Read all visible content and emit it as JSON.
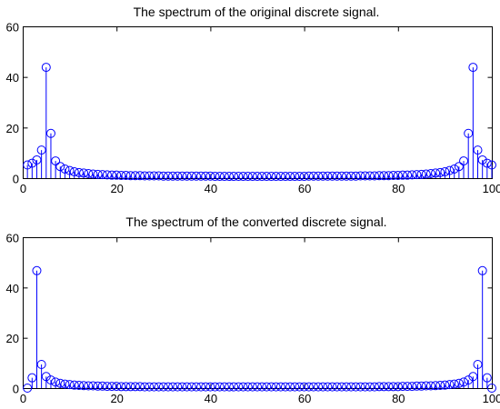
{
  "chart_data": [
    {
      "type": "stem",
      "title": "The spectrum of the original discrete signal.",
      "xlim": [
        0,
        100
      ],
      "ylim": [
        0,
        60
      ],
      "xticks": [
        "0",
        "20",
        "40",
        "60",
        "80",
        "100"
      ],
      "yticks": [
        "0",
        "20",
        "40",
        "60"
      ],
      "color": "#0000ff",
      "grid": false,
      "x": [
        1,
        2,
        3,
        4,
        5,
        6,
        7,
        8,
        9,
        10,
        11,
        12,
        13,
        14,
        15,
        16,
        17,
        18,
        19,
        20,
        21,
        22,
        23,
        24,
        25,
        26,
        27,
        28,
        29,
        30,
        31,
        32,
        33,
        34,
        35,
        36,
        37,
        38,
        39,
        40,
        41,
        42,
        43,
        44,
        45,
        46,
        47,
        48,
        49,
        50,
        51,
        52,
        53,
        54,
        55,
        56,
        57,
        58,
        59,
        60,
        61,
        62,
        63,
        64,
        65,
        66,
        67,
        68,
        69,
        70,
        71,
        72,
        73,
        74,
        75,
        76,
        77,
        78,
        79,
        80,
        81,
        82,
        83,
        84,
        85,
        86,
        87,
        88,
        89,
        90,
        91,
        92,
        93,
        94,
        95,
        96,
        97,
        98,
        99,
        100
      ],
      "y": [
        5.2,
        5.9,
        7.2,
        11.1,
        43.8,
        17.7,
        6.8,
        4.6,
        3.6,
        3.0,
        2.5,
        2.2,
        2.0,
        1.8,
        1.6,
        1.5,
        1.4,
        1.3,
        1.2,
        1.2,
        1.1,
        1.1,
        1.0,
        1.0,
        1.0,
        0.9,
        0.9,
        0.9,
        0.9,
        0.8,
        0.8,
        0.8,
        0.8,
        0.8,
        0.8,
        0.8,
        0.8,
        0.8,
        0.8,
        0.8,
        0.7,
        0.7,
        0.7,
        0.7,
        0.7,
        0.7,
        0.7,
        0.7,
        0.7,
        0.7,
        0.7,
        0.7,
        0.7,
        0.7,
        0.7,
        0.7,
        0.7,
        0.7,
        0.7,
        0.7,
        0.8,
        0.8,
        0.8,
        0.8,
        0.8,
        0.8,
        0.8,
        0.8,
        0.8,
        0.8,
        0.8,
        0.9,
        0.9,
        0.9,
        0.9,
        1.0,
        1.0,
        1.0,
        1.1,
        1.1,
        1.2,
        1.2,
        1.3,
        1.4,
        1.5,
        1.6,
        1.8,
        2.0,
        2.2,
        2.5,
        3.0,
        3.6,
        4.6,
        6.8,
        17.7,
        43.8,
        11.1,
        7.2,
        5.9,
        5.2
      ]
    },
    {
      "type": "stem",
      "title": "The spectrum of the converted discrete signal.",
      "xlim": [
        0,
        100
      ],
      "ylim": [
        0,
        60
      ],
      "xticks": [
        "0",
        "20",
        "40",
        "60",
        "80",
        "100"
      ],
      "yticks": [
        "0",
        "20",
        "40",
        "60"
      ],
      "color": "#0000ff",
      "grid": false,
      "x": [
        1,
        2,
        3,
        4,
        5,
        6,
        7,
        8,
        9,
        10,
        11,
        12,
        13,
        14,
        15,
        16,
        17,
        18,
        19,
        20,
        21,
        22,
        23,
        24,
        25,
        26,
        27,
        28,
        29,
        30,
        31,
        32,
        33,
        34,
        35,
        36,
        37,
        38,
        39,
        40,
        41,
        42,
        43,
        44,
        45,
        46,
        47,
        48,
        49,
        50,
        51,
        52,
        53,
        54,
        55,
        56,
        57,
        58,
        59,
        60,
        61,
        62,
        63,
        64,
        65,
        66,
        67,
        68,
        69,
        70,
        71,
        72,
        73,
        74,
        75,
        76,
        77,
        78,
        79,
        80,
        81,
        82,
        83,
        84,
        85,
        86,
        87,
        88,
        89,
        90,
        91,
        92,
        93,
        94,
        95,
        96,
        97,
        98,
        99,
        100
      ],
      "y": [
        0.0,
        4.1,
        46.7,
        9.4,
        4.6,
        3.2,
        2.4,
        1.9,
        1.6,
        1.4,
        1.2,
        1.1,
        1.0,
        0.9,
        0.9,
        0.8,
        0.8,
        0.7,
        0.7,
        0.7,
        0.6,
        0.6,
        0.6,
        0.6,
        0.6,
        0.5,
        0.5,
        0.5,
        0.5,
        0.5,
        0.5,
        0.5,
        0.5,
        0.5,
        0.5,
        0.5,
        0.5,
        0.5,
        0.5,
        0.5,
        0.5,
        0.5,
        0.5,
        0.5,
        0.5,
        0.5,
        0.5,
        0.5,
        0.5,
        0.5,
        0.5,
        0.5,
        0.5,
        0.5,
        0.5,
        0.5,
        0.5,
        0.5,
        0.5,
        0.5,
        0.5,
        0.5,
        0.5,
        0.5,
        0.5,
        0.5,
        0.5,
        0.5,
        0.5,
        0.5,
        0.5,
        0.5,
        0.5,
        0.5,
        0.5,
        0.6,
        0.6,
        0.6,
        0.6,
        0.6,
        0.7,
        0.7,
        0.7,
        0.8,
        0.8,
        0.9,
        0.9,
        1.0,
        1.1,
        1.2,
        1.4,
        1.6,
        1.9,
        2.4,
        3.2,
        4.6,
        9.4,
        46.7,
        4.1,
        0.0
      ]
    }
  ]
}
